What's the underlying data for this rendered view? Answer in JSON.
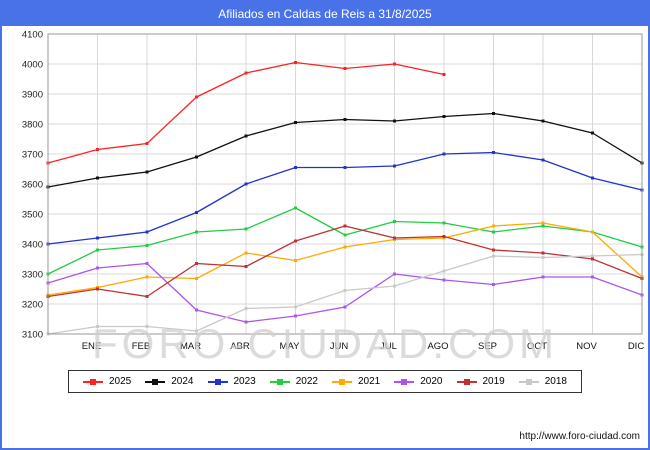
{
  "header": {
    "title": "Afiliados en Caldas de Reis a 31/8/2025"
  },
  "watermark": "FORO-CIUDAD.COM",
  "footer": {
    "url": "http://www.foro-ciudad.com"
  },
  "chart_data": {
    "type": "line",
    "title": "Afiliados en Caldas de Reis a 31/8/2025",
    "x_labels": [
      "ENE",
      "FEB",
      "MAR",
      "ABR",
      "MAY",
      "JUN",
      "JUL",
      "AGO",
      "SEP",
      "OCT",
      "NOV",
      "DIC"
    ],
    "note": "Each series starts on the y-axis with the previous December value, then one point per month; 2025 ends in AGO.",
    "ylim": [
      3100,
      4100
    ],
    "y_ticks": [
      3100,
      3200,
      3300,
      3400,
      3500,
      3600,
      3700,
      3800,
      3900,
      4000,
      4100
    ],
    "grid": true,
    "legend_position": "bottom",
    "series": [
      {
        "name": "2025",
        "color": "#ff2222",
        "values": [
          3670,
          3715,
          3735,
          3890,
          3970,
          4005,
          3985,
          4000,
          3965
        ]
      },
      {
        "name": "2024",
        "color": "#111111",
        "values": [
          3590,
          3620,
          3640,
          3690,
          3760,
          3805,
          3815,
          3810,
          3825,
          3835,
          3810,
          3770,
          3670
        ]
      },
      {
        "name": "2023",
        "color": "#2233cc",
        "values": [
          3400,
          3420,
          3440,
          3505,
          3600,
          3655,
          3655,
          3660,
          3700,
          3705,
          3680,
          3620,
          3580
        ]
      },
      {
        "name": "2022",
        "color": "#22cc44",
        "values": [
          3300,
          3380,
          3395,
          3440,
          3450,
          3520,
          3430,
          3475,
          3470,
          3440,
          3460,
          3440,
          3390
        ]
      },
      {
        "name": "2021",
        "color": "#ffaa00",
        "values": [
          3230,
          3255,
          3290,
          3285,
          3370,
          3345,
          3390,
          3415,
          3420,
          3460,
          3470,
          3440,
          3290
        ]
      },
      {
        "name": "2020",
        "color": "#aa55ee",
        "values": [
          3270,
          3320,
          3335,
          3180,
          3140,
          3160,
          3190,
          3300,
          3280,
          3265,
          3290,
          3290,
          3230
        ]
      },
      {
        "name": "2019",
        "color": "#bb3333",
        "values": [
          3225,
          3250,
          3225,
          3335,
          3325,
          3410,
          3460,
          3420,
          3425,
          3380,
          3370,
          3350,
          3285
        ]
      },
      {
        "name": "2018",
        "color": "#c9c9c9",
        "values": [
          3100,
          3125,
          3125,
          3110,
          3185,
          3190,
          3245,
          3260,
          3310,
          3360,
          3355,
          3360,
          3365
        ]
      }
    ]
  }
}
